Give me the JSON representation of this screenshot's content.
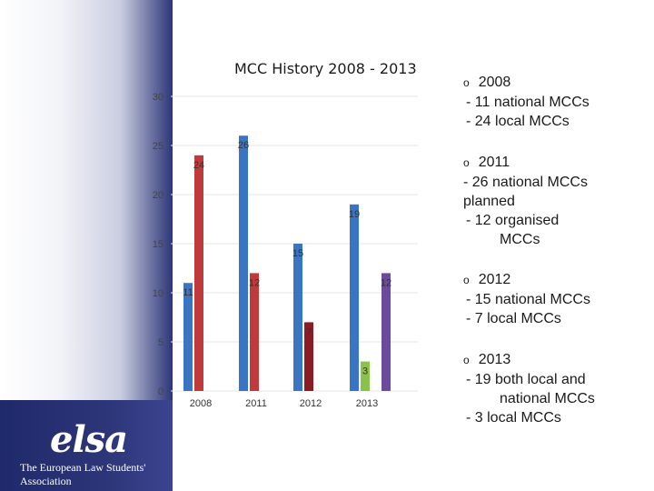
{
  "title": "MCC History 2008 - 2013",
  "colors": {
    "sidebar_blue": "#2c3577",
    "bar_2008": "#3a75c4",
    "bar_2011": "#c0393b",
    "bar_2012": "#8a1c25",
    "bar_2013": "#6b4b9e",
    "bar_2013_local": "#8bc34a"
  },
  "logo": {
    "mark": "elsa",
    "caption": "The European Law Students' Association"
  },
  "chart_data": {
    "type": "bar",
    "categories": [
      "2008",
      "2011",
      "2012",
      "2013"
    ],
    "series": [
      {
        "values": [
          11,
          26,
          15,
          19
        ]
      },
      {
        "values": [
          24,
          12,
          7,
          3
        ]
      },
      {
        "values": [
          null,
          null,
          null,
          12
        ]
      }
    ],
    "ylim": [
      0,
      30
    ],
    "yticks": [
      "0",
      "5",
      "10",
      "15",
      "20",
      "25",
      "30"
    ],
    "data_labels": [
      {
        "series": 0,
        "cat": 0,
        "text": "11"
      },
      {
        "series": 1,
        "cat": 0,
        "text": "24"
      },
      {
        "series": 0,
        "cat": 1,
        "text": "26"
      },
      {
        "series": 1,
        "cat": 1,
        "text": "12"
      },
      {
        "series": 0,
        "cat": 2,
        "text": "15"
      },
      {
        "series": 1,
        "cat": 2,
        "text": "7"
      },
      {
        "series": 0,
        "cat": 3,
        "text": "19"
      },
      {
        "series": 1,
        "cat": 3,
        "text": "3"
      },
      {
        "series": 2,
        "cat": 3,
        "text": "12"
      }
    ]
  },
  "notes": [
    {
      "bullet": "o",
      "head": "2008",
      "lines": [
        "- 11 national MCCs",
        "- 24 local MCCs"
      ]
    },
    {
      "bullet": "o",
      "head": "2011",
      "lines": [
        "- 26 national MCCs",
        "planned",
        "- 12 organised",
        "MCCs"
      ]
    },
    {
      "bullet": "o",
      "head": "2012",
      "lines": [
        "- 15 national MCCs",
        "- 7 local MCCs"
      ]
    },
    {
      "bullet": "o",
      "head": "2013",
      "lines": [
        "- 19 both local and",
        "national MCCs",
        "- 3 local MCCs"
      ]
    }
  ]
}
